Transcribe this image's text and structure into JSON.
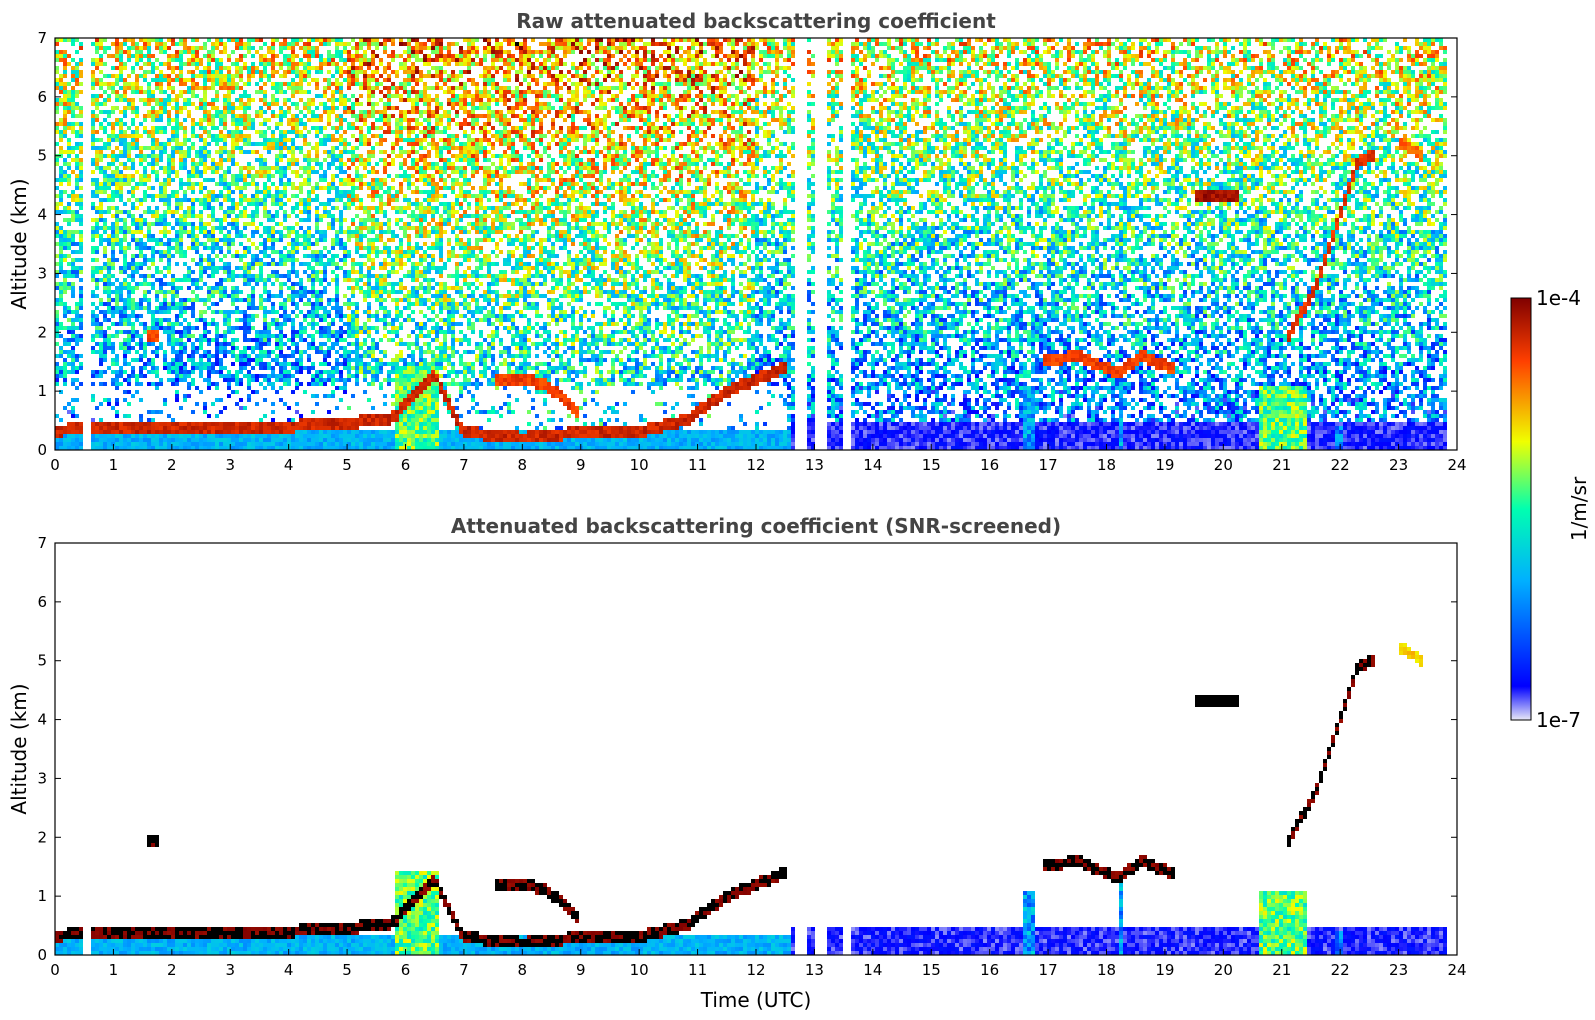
{
  "chart_data": [
    {
      "type": "heatmap",
      "title": "Raw attenuated backscattering coefficient",
      "xlabel": "",
      "ylabel": "Altitude (km)",
      "xlim": [
        0,
        24
      ],
      "ylim": [
        0,
        7
      ],
      "xticks": [
        "0",
        "1",
        "2",
        "3",
        "4",
        "5",
        "6",
        "7",
        "8",
        "9",
        "10",
        "11",
        "12",
        "13",
        "14",
        "15",
        "16",
        "17",
        "18",
        "19",
        "20",
        "21",
        "22",
        "23",
        "24"
      ],
      "yticks": [
        "0",
        "1",
        "2",
        "3",
        "4",
        "5",
        "6",
        "7"
      ],
      "grid": false,
      "noise": "high",
      "gaps": [
        [
          0.47,
          0.6
        ],
        [
          12.68,
          12.85
        ],
        [
          13.0,
          13.2
        ],
        [
          13.48,
          13.6
        ],
        [
          23.82,
          24
        ]
      ],
      "layers": [
        {
          "name": "boundary-layer aerosol",
          "points": [
            [
              0,
              0.33
            ],
            [
              1,
              0.38
            ],
            [
              2,
              0.35
            ],
            [
              3,
              0.35
            ],
            [
              4,
              0.4
            ],
            [
              5,
              0.45
            ],
            [
              5.8,
              0.55
            ],
            [
              6.5,
              1.3
            ],
            [
              7,
              0.3
            ],
            [
              8,
              0.2
            ],
            [
              9,
              0.3
            ],
            [
              10,
              0.3
            ],
            [
              10.8,
              0.5
            ],
            [
              11.5,
              1.0
            ],
            [
              12.5,
              1.4
            ]
          ],
          "level": 0.95
        },
        {
          "name": "cloud 1.9 km",
          "points": [
            [
              1.6,
              1.95
            ],
            [
              1.8,
              1.95
            ]
          ],
          "level": 0.9
        },
        {
          "name": "rising layer",
          "points": [
            [
              7.5,
              1.2
            ],
            [
              8.3,
              1.15
            ],
            [
              8.7,
              0.9
            ],
            [
              9.0,
              0.6
            ]
          ],
          "level": 0.9
        },
        {
          "name": "afternoon clouds",
          "points": [
            [
              16.9,
              1.5
            ],
            [
              17.5,
              1.6
            ],
            [
              18.2,
              1.3
            ],
            [
              18.6,
              1.6
            ],
            [
              19.2,
              1.35
            ]
          ],
          "level": 0.9
        },
        {
          "name": "cloud 4.3 km",
          "points": [
            [
              19.5,
              4.3
            ],
            [
              20.3,
              4.3
            ]
          ],
          "level": 1.0
        },
        {
          "name": "ascending plume",
          "points": [
            [
              21.1,
              1.9
            ],
            [
              21.6,
              2.8
            ],
            [
              22.0,
              4.0
            ],
            [
              22.3,
              4.9
            ],
            [
              22.6,
              5.0
            ]
          ],
          "level": 0.92
        },
        {
          "name": "high patch",
          "points": [
            [
              23.0,
              5.25
            ],
            [
              23.4,
              5.0
            ]
          ],
          "level": 0.85
        }
      ],
      "columns": [
        {
          "x": [
            5.85,
            6.55
          ],
          "top": 1.4,
          "level": 0.55
        },
        {
          "x": [
            16.6,
            16.75
          ],
          "top": 1.1,
          "level": 0.3
        },
        {
          "x": [
            18.2,
            18.3
          ],
          "top": 1.3,
          "level": 0.3
        },
        {
          "x": [
            20.6,
            21.45
          ],
          "top": 1.1,
          "level": 0.55
        },
        {
          "x": [
            21.9,
            22.05
          ],
          "top": 0.4,
          "level": 0.25
        }
      ]
    },
    {
      "type": "heatmap",
      "title": "Attenuated backscattering coefficient (SNR-screened)",
      "xlabel": "Time (UTC)",
      "ylabel": "Altitude (km)",
      "xlim": [
        0,
        24
      ],
      "ylim": [
        0,
        7
      ],
      "xticks": [
        "0",
        "1",
        "2",
        "3",
        "4",
        "5",
        "6",
        "7",
        "8",
        "9",
        "10",
        "11",
        "12",
        "13",
        "14",
        "15",
        "16",
        "17",
        "18",
        "19",
        "20",
        "21",
        "22",
        "23",
        "24"
      ],
      "yticks": [
        "0",
        "1",
        "2",
        "3",
        "4",
        "5",
        "6",
        "7"
      ],
      "grid": false,
      "noise": "screened",
      "gaps": [
        [
          0.47,
          0.6
        ],
        [
          12.68,
          12.85
        ],
        [
          13.0,
          13.2
        ],
        [
          13.48,
          13.6
        ],
        [
          23.82,
          24
        ]
      ],
      "layers": [
        {
          "name": "boundary-layer aerosol",
          "points": [
            [
              0,
              0.33
            ],
            [
              1,
              0.38
            ],
            [
              2,
              0.35
            ],
            [
              3,
              0.35
            ],
            [
              4,
              0.4
            ],
            [
              5,
              0.45
            ],
            [
              5.8,
              0.55
            ],
            [
              6.5,
              1.3
            ],
            [
              7,
              0.3
            ],
            [
              8,
              0.2
            ],
            [
              9,
              0.3
            ],
            [
              10,
              0.3
            ],
            [
              10.8,
              0.5
            ],
            [
              11.5,
              1.0
            ],
            [
              12.5,
              1.4
            ]
          ],
          "level": 1.05
        },
        {
          "name": "cloud 1.9 km",
          "points": [
            [
              1.6,
              1.95
            ],
            [
              1.8,
              1.95
            ]
          ],
          "level": 1.05
        },
        {
          "name": "rising layer",
          "points": [
            [
              7.5,
              1.2
            ],
            [
              8.3,
              1.15
            ],
            [
              8.7,
              0.9
            ],
            [
              9.0,
              0.6
            ]
          ],
          "level": 1.05
        },
        {
          "name": "afternoon clouds",
          "points": [
            [
              16.9,
              1.5
            ],
            [
              17.5,
              1.6
            ],
            [
              18.2,
              1.3
            ],
            [
              18.6,
              1.6
            ],
            [
              19.2,
              1.35
            ]
          ],
          "level": 1.05
        },
        {
          "name": "cloud 4.3 km",
          "points": [
            [
              19.5,
              4.3
            ],
            [
              20.3,
              4.3
            ]
          ],
          "level": 1.1
        },
        {
          "name": "ascending plume",
          "points": [
            [
              21.1,
              1.9
            ],
            [
              21.6,
              2.8
            ],
            [
              22.0,
              4.0
            ],
            [
              22.3,
              4.9
            ],
            [
              22.6,
              5.0
            ]
          ],
          "level": 1.05
        },
        {
          "name": "high patch",
          "points": [
            [
              23.0,
              5.25
            ],
            [
              23.4,
              5.0
            ]
          ],
          "level": 0.75
        }
      ],
      "columns": [
        {
          "x": [
            5.85,
            6.55
          ],
          "top": 1.4,
          "level": 0.55
        },
        {
          "x": [
            16.6,
            16.75
          ],
          "top": 1.1,
          "level": 0.3
        },
        {
          "x": [
            18.2,
            18.3
          ],
          "top": 1.3,
          "level": 0.3
        },
        {
          "x": [
            20.6,
            21.45
          ],
          "top": 1.1,
          "level": 0.55
        },
        {
          "x": [
            21.9,
            22.05
          ],
          "top": 0.4,
          "level": 0.25
        }
      ]
    }
  ],
  "colorbar": {
    "label": "1/m/sr",
    "max_label": "1e-4",
    "min_label": "1e-7",
    "colors": [
      "#e8e8f6",
      "#0000ff",
      "#00b0ff",
      "#00ffb0",
      "#f0ff00",
      "#ff4000",
      "#800000"
    ]
  },
  "colors": {
    "saturated": "#000000",
    "title": "#444444"
  }
}
